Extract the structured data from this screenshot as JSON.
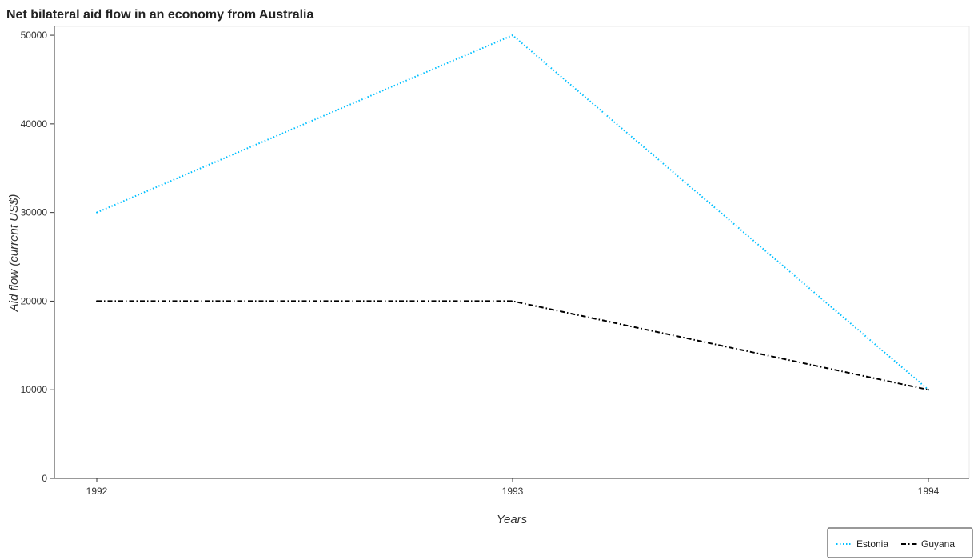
{
  "chart_data": {
    "type": "line",
    "title": "Net bilateral aid flow in an economy from Australia",
    "xlabel": "Years",
    "ylabel": "Aid flow (current US$)",
    "categories": [
      "1992",
      "1993",
      "1994"
    ],
    "ylim": [
      0,
      51000
    ],
    "yticks": [
      0,
      10000,
      20000,
      30000,
      40000,
      50000
    ],
    "ytick_labels": [
      "0",
      "10000",
      "20000",
      "30000",
      "40000",
      "50000"
    ],
    "grid": false,
    "legend_position": "bottom-right",
    "series": [
      {
        "name": "Estonia",
        "values": [
          30000,
          50000,
          10000
        ],
        "color": "#00bfff",
        "style": "dotted"
      },
      {
        "name": "Guyana",
        "values": [
          20000,
          20000,
          10000
        ],
        "color": "#000000",
        "style": "dashdot"
      }
    ]
  }
}
